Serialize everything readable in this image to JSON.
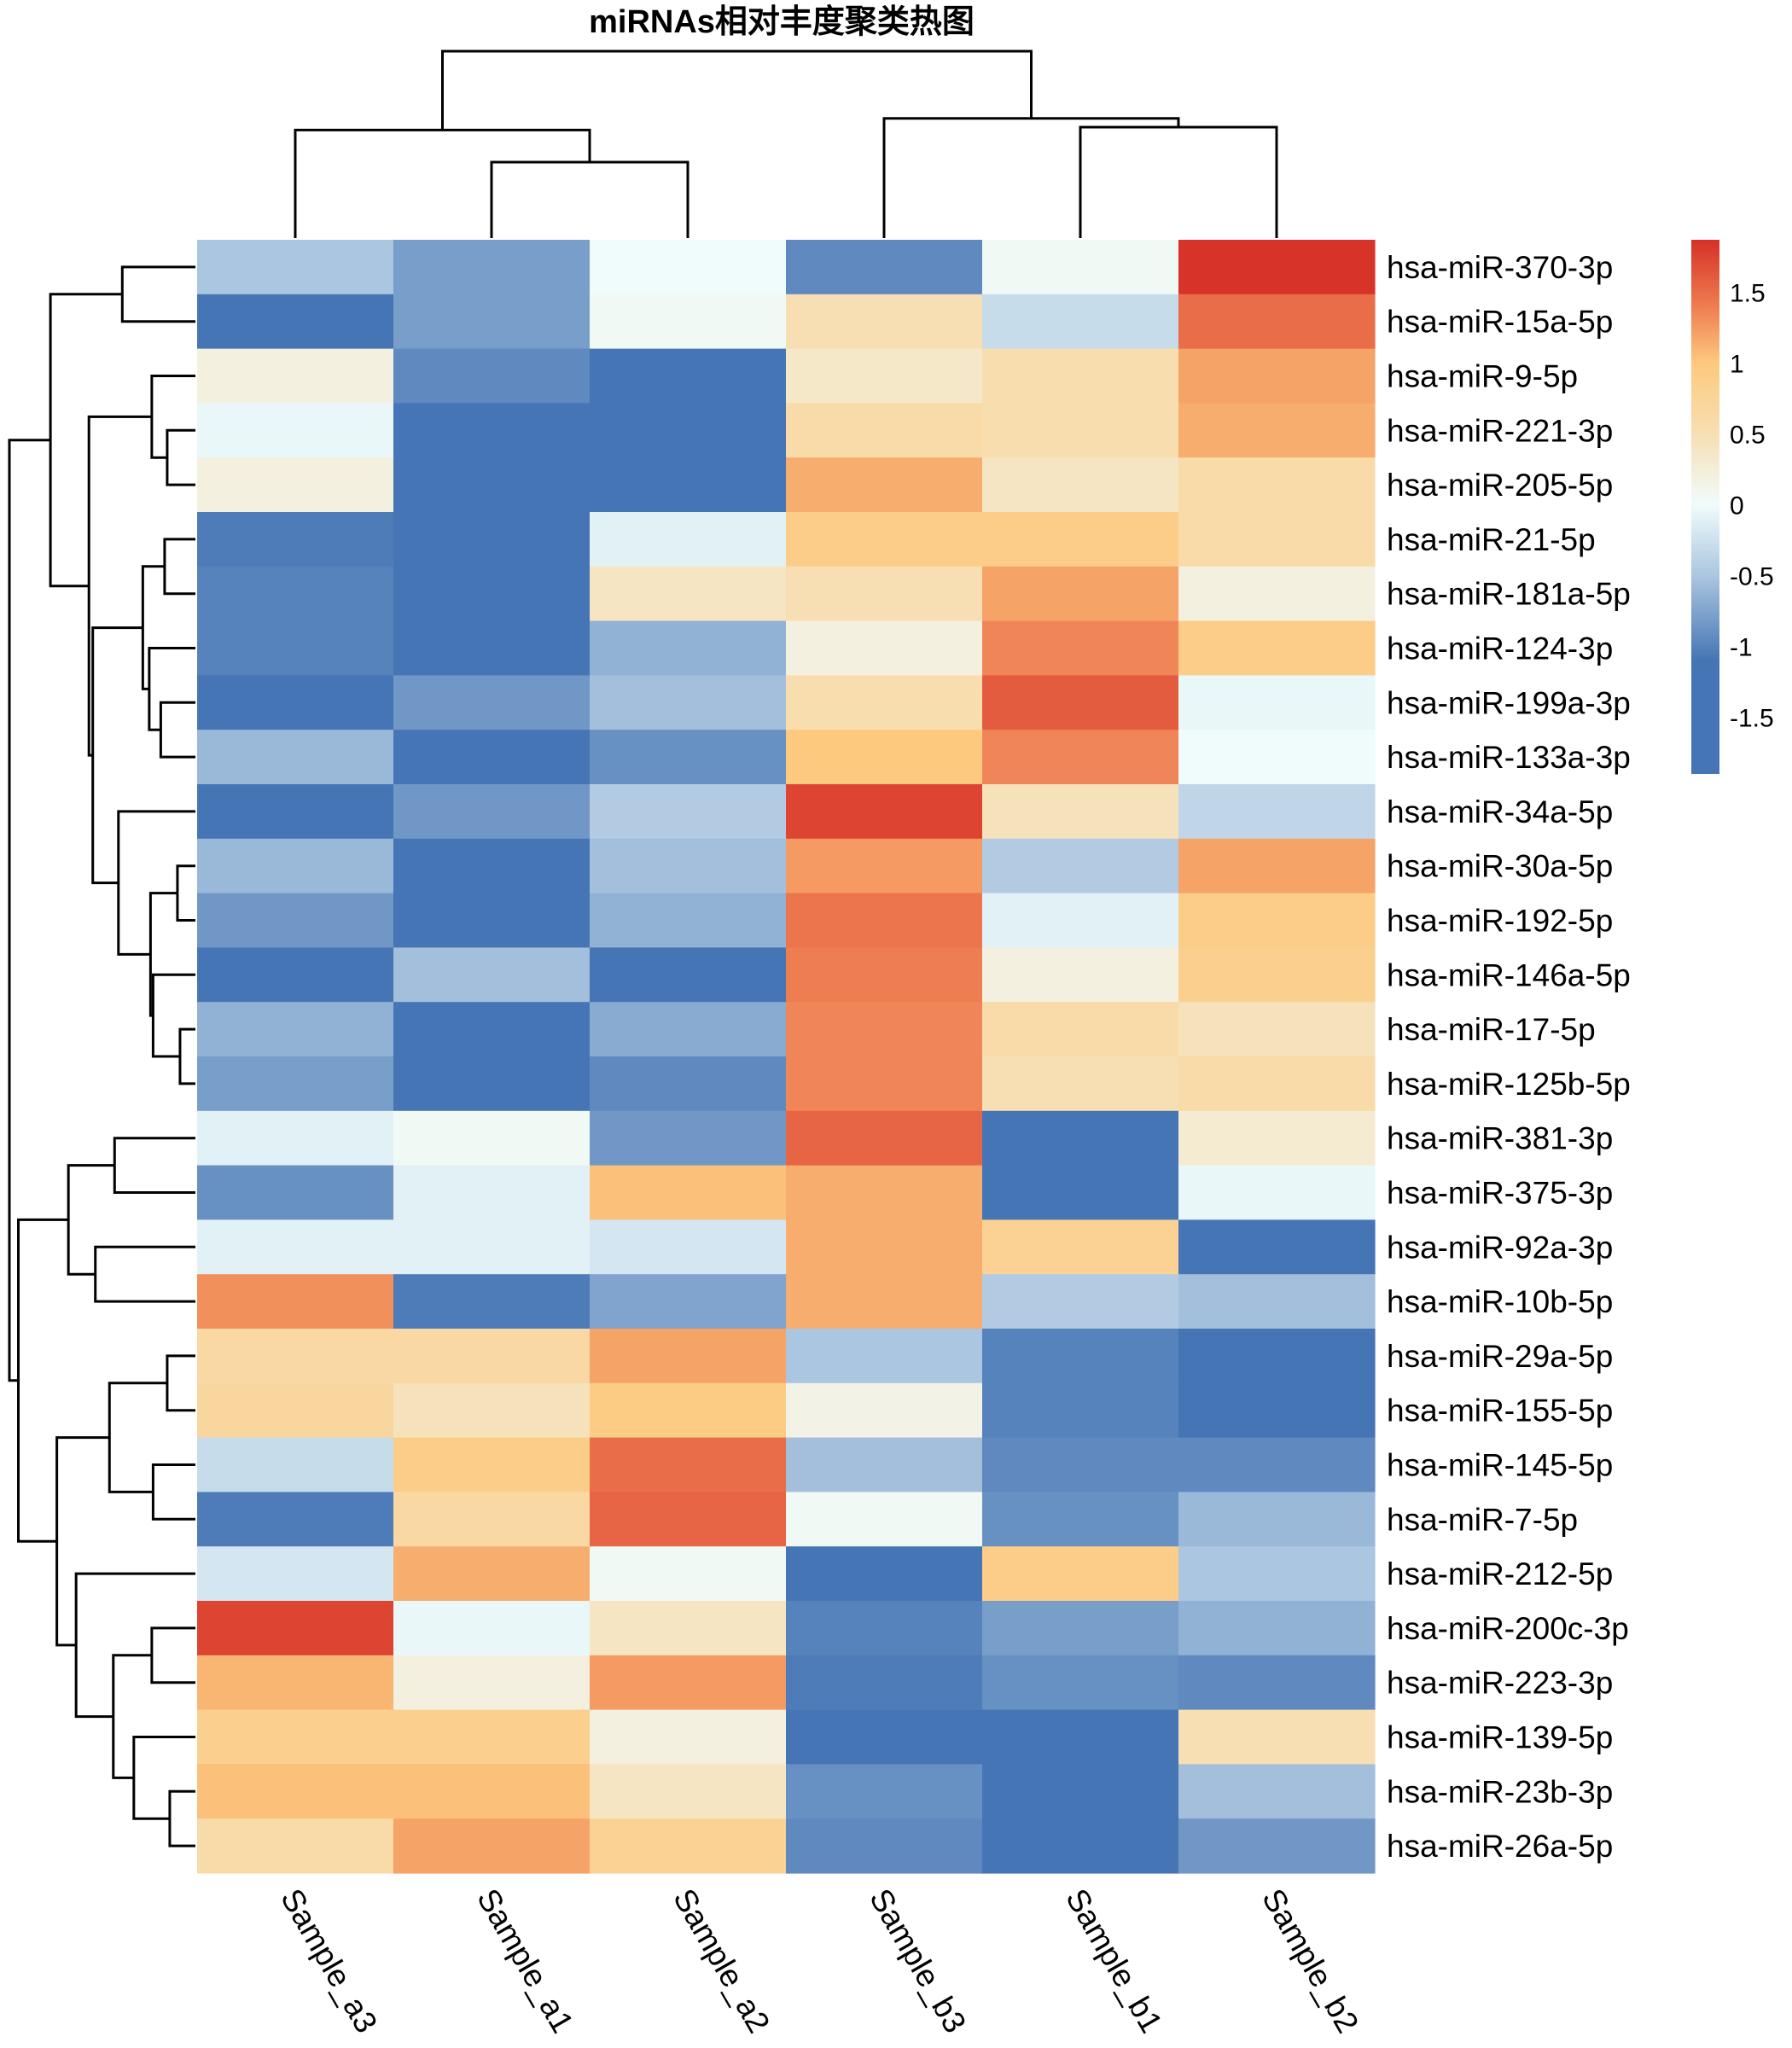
{
  "chart_data": {
    "type": "heatmap",
    "title": "miRNAs相对丰度聚类热图",
    "xlabel": "",
    "ylabel": "",
    "columns": [
      "Sample_a3",
      "Sample_a1",
      "Sample_a2",
      "Sample_b3",
      "Sample_b1",
      "Sample_b2"
    ],
    "rows": [
      "hsa-miR-370-3p",
      "hsa-miR-15a-5p",
      "hsa-miR-9-5p",
      "hsa-miR-221-3p",
      "hsa-miR-205-5p",
      "hsa-miR-21-5p",
      "hsa-miR-181a-5p",
      "hsa-miR-124-3p",
      "hsa-miR-199a-3p",
      "hsa-miR-133a-3p",
      "hsa-miR-34a-5p",
      "hsa-miR-30a-5p",
      "hsa-miR-192-5p",
      "hsa-miR-146a-5p",
      "hsa-miR-17-5p",
      "hsa-miR-125b-5p",
      "hsa-miR-381-3p",
      "hsa-miR-375-3p",
      "hsa-miR-92a-3p",
      "hsa-miR-10b-5p",
      "hsa-miR-29a-5p",
      "hsa-miR-155-5p",
      "hsa-miR-145-5p",
      "hsa-miR-7-5p",
      "hsa-miR-212-5p",
      "hsa-miR-200c-3p",
      "hsa-miR-223-3p",
      "hsa-miR-139-5p",
      "hsa-miR-23b-3p",
      "hsa-miR-26a-5p"
    ],
    "values": [
      [
        -0.5,
        -0.8,
        0.0,
        -0.95,
        0.05,
        1.85
      ],
      [
        -1.2,
        -0.8,
        0.05,
        0.5,
        -0.3,
        1.5
      ],
      [
        0.2,
        -0.95,
        -1.2,
        0.35,
        0.55,
        1.2
      ],
      [
        -0.05,
        -1.3,
        -1.2,
        0.6,
        0.55,
        1.15
      ],
      [
        0.2,
        -1.3,
        -1.25,
        1.15,
        0.4,
        0.6
      ],
      [
        -1.05,
        -1.3,
        -0.1,
        0.9,
        0.9,
        0.6
      ],
      [
        -1.0,
        -1.3,
        0.4,
        0.5,
        1.2,
        0.2
      ],
      [
        -1.0,
        -1.1,
        -0.65,
        0.2,
        1.35,
        0.9
      ],
      [
        -1.2,
        -0.85,
        -0.55,
        0.55,
        1.6,
        -0.05
      ],
      [
        -0.6,
        -1.1,
        -0.9,
        1.0,
        1.35,
        0.0
      ],
      [
        -1.15,
        -0.85,
        -0.45,
        1.75,
        0.45,
        -0.35
      ],
      [
        -0.6,
        -1.1,
        -0.55,
        1.25,
        -0.45,
        1.2
      ],
      [
        -0.85,
        -1.1,
        -0.65,
        1.45,
        -0.1,
        0.9
      ],
      [
        -1.2,
        -0.55,
        -1.1,
        1.4,
        0.2,
        0.85
      ],
      [
        -0.65,
        -1.2,
        -0.7,
        1.35,
        0.6,
        0.45
      ],
      [
        -0.8,
        -1.2,
        -0.95,
        1.35,
        0.5,
        0.6
      ],
      [
        -0.1,
        0.05,
        -0.85,
        1.55,
        -1.2,
        0.3
      ],
      [
        -0.9,
        -0.1,
        1.05,
        1.15,
        -1.25,
        -0.05
      ],
      [
        -0.1,
        -0.1,
        -0.2,
        1.15,
        0.8,
        -1.25
      ],
      [
        1.3,
        -1.05,
        -0.75,
        1.15,
        -0.45,
        -0.55
      ],
      [
        0.65,
        0.65,
        1.2,
        -0.5,
        -1.0,
        -1.2
      ],
      [
        0.7,
        0.45,
        0.95,
        0.15,
        -1.0,
        -1.2
      ],
      [
        -0.3,
        0.9,
        1.5,
        -0.55,
        -0.95,
        -0.95
      ],
      [
        -1.05,
        0.65,
        1.55,
        0.05,
        -0.9,
        -0.6
      ],
      [
        -0.2,
        1.15,
        0.05,
        -1.2,
        0.9,
        -0.5
      ],
      [
        1.75,
        -0.05,
        0.4,
        -1.0,
        -0.8,
        -0.65
      ],
      [
        1.1,
        0.2,
        1.25,
        -1.05,
        -0.9,
        -0.95
      ],
      [
        0.85,
        0.85,
        0.2,
        -1.15,
        -1.2,
        0.5
      ],
      [
        1.05,
        1.05,
        0.4,
        -0.9,
        -1.2,
        -0.55
      ],
      [
        0.6,
        1.2,
        0.8,
        -0.95,
        -1.15,
        -0.85
      ]
    ],
    "legend": {
      "type": "colorbar",
      "placement": "right",
      "range": [
        -1.9,
        1.87
      ],
      "ticks": [
        "1.5",
        "1",
        "0.5",
        "0",
        "-0.5",
        "-1",
        "-1.5"
      ],
      "tick_values": [
        1.5,
        1,
        0.5,
        0,
        -0.5,
        -1,
        -1.5
      ]
    },
    "color_scale": [
      {
        "value": -1.9,
        "color": "#4575b4"
      },
      {
        "value": -1.1,
        "color": "#4575b4"
      },
      {
        "value": -0.5,
        "color": "#abc6e0"
      },
      {
        "value": 0.0,
        "color": "#f0fcfc"
      },
      {
        "value": 0.5,
        "color": "#f7dfb3"
      },
      {
        "value": 1.0,
        "color": "#fdc97f"
      },
      {
        "value": 1.4,
        "color": "#ee7d51"
      },
      {
        "value": 1.87,
        "color": "#d73027"
      }
    ],
    "row_dendrogram": {
      "merges": [
        {
          "id": "r1",
          "children": [
            0,
            1
          ],
          "height": 0.57
        },
        {
          "id": "r2",
          "children": [
            3,
            4
          ],
          "height": 0.22
        },
        {
          "id": "r3",
          "children": [
            2,
            "r2"
          ],
          "height": 0.34
        },
        {
          "id": "r4",
          "children": [
            5,
            6
          ],
          "height": 0.24
        },
        {
          "id": "r5",
          "children": [
            8,
            9
          ],
          "height": 0.27
        },
        {
          "id": "r6",
          "children": [
            7,
            "r5"
          ],
          "height": 0.36
        },
        {
          "id": "r7",
          "children": [
            "r4",
            "r6"
          ],
          "height": 0.41
        },
        {
          "id": "r8",
          "children": [
            11,
            12
          ],
          "height": 0.14
        },
        {
          "id": "r9",
          "children": [
            14,
            15
          ],
          "height": 0.12
        },
        {
          "id": "r10",
          "children": [
            13,
            "r9"
          ],
          "height": 0.33
        },
        {
          "id": "r11",
          "children": [
            "r8",
            "r10"
          ],
          "height": 0.35
        },
        {
          "id": "r12",
          "children": [
            10,
            "r11"
          ],
          "height": 0.6
        },
        {
          "id": "r13",
          "children": [
            "r7",
            "r12"
          ],
          "height": 0.8
        },
        {
          "id": "r14",
          "children": [
            "r3",
            "r13"
          ],
          "height": 0.83
        },
        {
          "id": "r15",
          "children": [
            "r1",
            "r14"
          ],
          "height": 1.13
        },
        {
          "id": "r16",
          "children": [
            16,
            17
          ],
          "height": 0.63
        },
        {
          "id": "r17",
          "children": [
            18,
            19
          ],
          "height": 0.78
        },
        {
          "id": "r18",
          "children": [
            "r16",
            "r17"
          ],
          "height": 0.99
        },
        {
          "id": "r19",
          "children": [
            20,
            21
          ],
          "height": 0.22
        },
        {
          "id": "r20",
          "children": [
            22,
            23
          ],
          "height": 0.33
        },
        {
          "id": "r21",
          "children": [
            "r19",
            "r20"
          ],
          "height": 0.67
        },
        {
          "id": "r22",
          "children": [
            25,
            26
          ],
          "height": 0.34
        },
        {
          "id": "r23",
          "children": [
            28,
            29
          ],
          "height": 0.2
        },
        {
          "id": "r24",
          "children": [
            27,
            "r23"
          ],
          "height": 0.48
        },
        {
          "id": "r25",
          "children": [
            "r22",
            "r24"
          ],
          "height": 0.64
        },
        {
          "id": "r26",
          "children": [
            24,
            "r25"
          ],
          "height": 0.93
        },
        {
          "id": "r27",
          "children": [
            "r21",
            "r26"
          ],
          "height": 1.08
        },
        {
          "id": "r28",
          "children": [
            "r18",
            "r27"
          ],
          "height": 1.38
        },
        {
          "id": "r29",
          "children": [
            "r15",
            "r28"
          ],
          "height": 1.45
        }
      ]
    },
    "col_dendrogram": {
      "merges": [
        {
          "id": "c1",
          "children": [
            1,
            2
          ],
          "height": 0.26
        },
        {
          "id": "c2",
          "children": [
            0,
            "c1"
          ],
          "height": 0.37
        },
        {
          "id": "c3",
          "children": [
            4,
            5
          ],
          "height": 0.38
        },
        {
          "id": "c4",
          "children": [
            3,
            "c3"
          ],
          "height": 0.41
        },
        {
          "id": "c5",
          "children": [
            "c2",
            "c4"
          ],
          "height": 0.64
        }
      ]
    }
  }
}
